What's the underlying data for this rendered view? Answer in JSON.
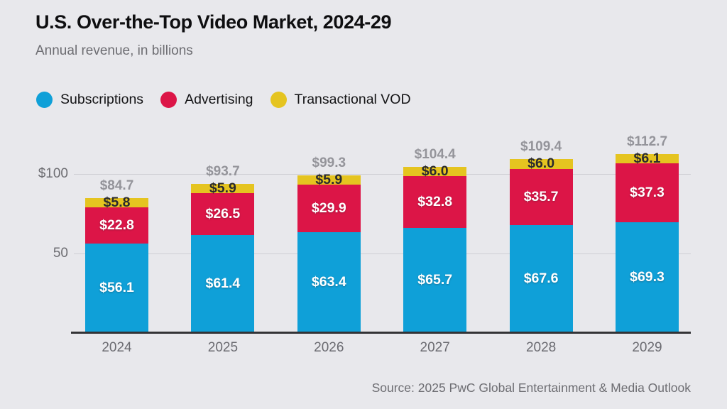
{
  "header": {
    "title": "U.S. Over-the-Top Video Market, 2024-29",
    "subtitle": "Annual revenue, in billions"
  },
  "legend": {
    "items": [
      {
        "label": "Subscriptions",
        "color": "#0fa0d8"
      },
      {
        "label": "Advertising",
        "color": "#dc1547"
      },
      {
        "label": "Transactional VOD",
        "color": "#e5c420"
      }
    ]
  },
  "chart_data": {
    "type": "bar",
    "stacked": true,
    "title": "U.S. Over-the-Top Video Market, 2024-29",
    "subtitle": "Annual revenue, in billions",
    "categories": [
      "2024",
      "2025",
      "2026",
      "2027",
      "2028",
      "2029"
    ],
    "series": [
      {
        "name": "Subscriptions",
        "color": "#0fa0d8",
        "label_style": "light",
        "values": [
          56.1,
          61.4,
          63.4,
          65.7,
          67.6,
          69.3
        ]
      },
      {
        "name": "Advertising",
        "color": "#dc1547",
        "label_style": "light",
        "values": [
          22.8,
          26.5,
          29.9,
          32.8,
          35.7,
          37.3
        ]
      },
      {
        "name": "Transactional VOD",
        "color": "#e5c420",
        "label_style": "dark",
        "values": [
          5.8,
          5.9,
          5.9,
          6.0,
          6.0,
          6.1
        ]
      }
    ],
    "totals": [
      84.7,
      93.7,
      99.3,
      104.4,
      109.4,
      112.7
    ],
    "value_prefix": "$",
    "y_axis": {
      "ticks": [
        {
          "value": 100,
          "label": "$100"
        },
        {
          "value": 50,
          "label": "50"
        }
      ]
    },
    "ylim": [
      0,
      120
    ],
    "grid": true,
    "legend_position": "top-left"
  },
  "footer": {
    "source": "Source: 2025 PwC Global Entertainment & Media Outlook"
  }
}
